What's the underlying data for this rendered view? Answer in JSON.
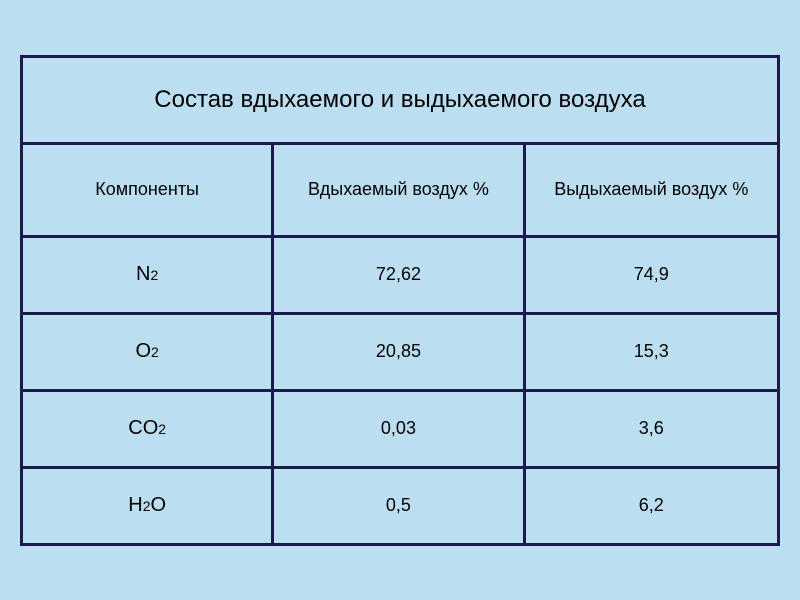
{
  "table": {
    "title": "Состав вдыхаемого и выдыхаемого воздуха",
    "columns": [
      "Компоненты",
      "Вдыхаемый воздух %",
      "Выдыхаемый воздух %"
    ],
    "rows": [
      {
        "component": "N",
        "subscript": "2",
        "inhaled": "72,62",
        "exhaled": "74,9"
      },
      {
        "component": "O",
        "subscript": "2",
        "inhaled": "20,85",
        "exhaled": "15,3"
      },
      {
        "component": "CO",
        "subscript": "2",
        "inhaled": "0,03",
        "exhaled": "3,6"
      },
      {
        "component": "H",
        "subscript": "2",
        "suffix": "O",
        "inhaled": "0,5",
        "exhaled": "6,2"
      }
    ],
    "styling": {
      "background_color": "#bbdef0",
      "border_color": "#1a1a4d",
      "border_width": 3,
      "text_color": "#000000",
      "title_fontsize": 24,
      "header_fontsize": 18,
      "cell_fontsize": 18,
      "column_widths_pct": [
        33.33,
        33.33,
        33.34
      ]
    }
  }
}
